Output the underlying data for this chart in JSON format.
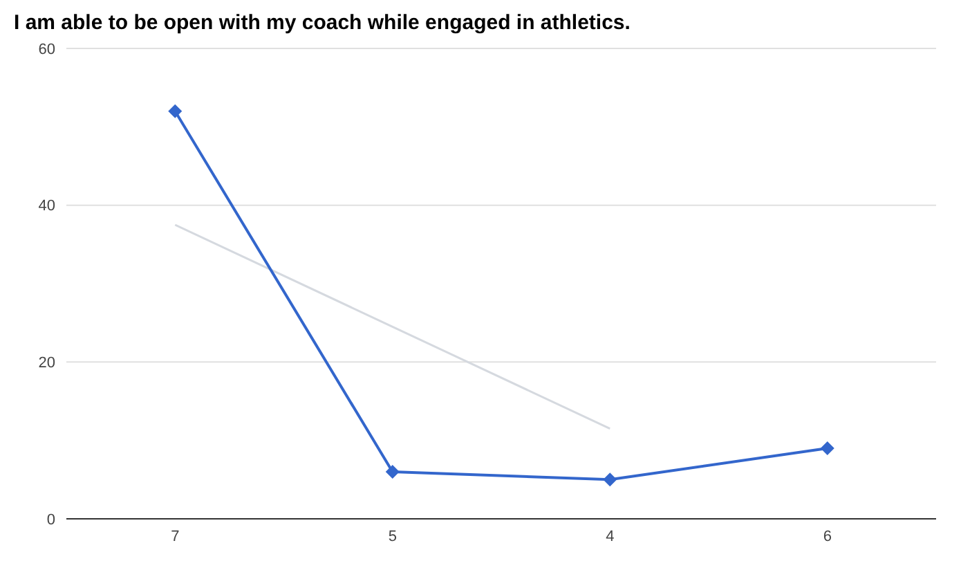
{
  "chart_data": {
    "type": "line",
    "title": "I am able to be open with my coach while engaged in athletics.",
    "categories": [
      "7",
      "5",
      "4",
      "6"
    ],
    "series": [
      {
        "color": "#3366cc",
        "values": [
          52,
          6,
          5,
          9
        ],
        "marker": "diamond"
      },
      {
        "type": "line",
        "color": "#d5d9df",
        "x": [
          "7",
          "5",
          "4"
        ],
        "values": [
          37.5,
          24.5,
          11.5
        ],
        "marker": "none"
      }
    ],
    "ylim": [
      0,
      60
    ],
    "yticks": [
      0,
      20,
      40,
      60
    ],
    "grid": "y"
  }
}
